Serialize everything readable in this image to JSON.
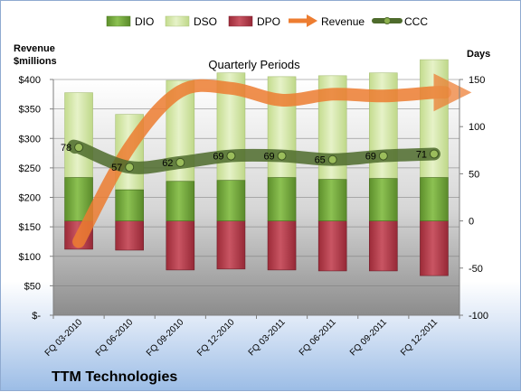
{
  "company": "TTM Technologies",
  "chart_data": {
    "type": "bar",
    "title": "Quarterly Periods",
    "categories": [
      "FQ 03-2010",
      "FQ 06-2010",
      "FQ 09-2010",
      "FQ 12-2010",
      "FQ 03-2011",
      "FQ 06-2011",
      "FQ 09-2011",
      "FQ 12-2011"
    ],
    "y_left": {
      "label": "Revenue\n$millions",
      "range": [
        0,
        400
      ],
      "ticks": [
        "$-",
        "$50",
        "$100",
        "$150",
        "$200",
        "$250",
        "$300",
        "$350",
        "$400"
      ]
    },
    "y_right": {
      "label": "Days",
      "range": [
        -100,
        150
      ],
      "ticks": [
        "-100",
        "-50",
        "0",
        "50",
        "100",
        "150"
      ]
    },
    "series": [
      {
        "name": "DIO",
        "axis": "right",
        "kind": "stacked-bar",
        "color": "#6fa33a",
        "values": [
          46,
          33,
          42,
          43,
          46,
          44,
          45,
          46
        ]
      },
      {
        "name": "DSO",
        "axis": "right",
        "kind": "stacked-bar",
        "color": "#d3e6a6",
        "values": [
          90,
          80,
          107,
          114,
          107,
          110,
          112,
          125
        ]
      },
      {
        "name": "DPO",
        "axis": "right",
        "kind": "negative-bar",
        "color": "#b23a48",
        "values": [
          -30,
          -31,
          -52,
          -51,
          -52,
          -53,
          -53,
          -58
        ]
      },
      {
        "name": "Revenue",
        "axis": "left",
        "kind": "line",
        "color": "#ed7d31",
        "values": [
          125,
          285,
          380,
          385,
          365,
          375,
          372,
          378
        ]
      },
      {
        "name": "CCC",
        "axis": "right",
        "kind": "line",
        "color": "#4e6b2c",
        "values": [
          78,
          57,
          62,
          69,
          69,
          65,
          69,
          71
        ]
      }
    ],
    "data_labels": [
      "78",
      "57",
      "62",
      "69",
      "69",
      "65",
      "69",
      "71"
    ],
    "legend": {
      "position": "top",
      "items": [
        "DIO",
        "DSO",
        "DPO",
        "Revenue",
        "CCC"
      ]
    },
    "grid": true
  }
}
